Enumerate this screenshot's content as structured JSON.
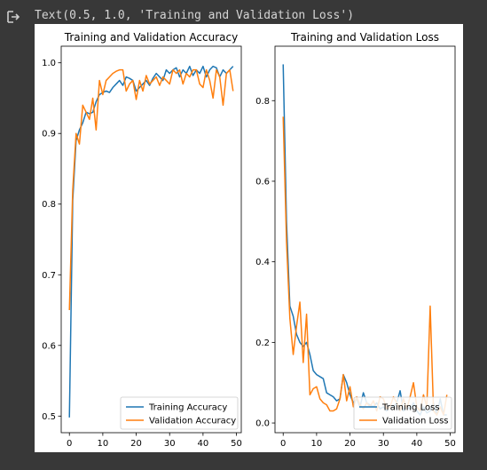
{
  "cell_output": {
    "icon": "output-arrow-icon",
    "text": "Text(0.5, 1.0, 'Training and Validation Loss')"
  },
  "chart_data": [
    {
      "type": "line",
      "title": "Training and Validation Accuracy",
      "xlabel": "",
      "ylabel": "",
      "xlim": [
        -2.45,
        51.45
      ],
      "ylim": [
        0.4765,
        1.0235
      ],
      "xticks": [
        0,
        10,
        20,
        30,
        40,
        50
      ],
      "yticks": [
        0.5,
        0.6,
        0.7,
        0.8,
        0.9,
        1.0
      ],
      "legend": "lower-right",
      "grid": false,
      "x": [
        0,
        1,
        2,
        3,
        4,
        5,
        6,
        7,
        8,
        9,
        10,
        11,
        12,
        13,
        14,
        15,
        16,
        17,
        18,
        19,
        20,
        21,
        22,
        23,
        24,
        25,
        26,
        27,
        28,
        29,
        30,
        31,
        32,
        33,
        34,
        35,
        36,
        37,
        38,
        39,
        40,
        41,
        42,
        43,
        44,
        45,
        46,
        47,
        48,
        49
      ],
      "series": [
        {
          "name": "Training Accuracy",
          "color": "#1f77b4",
          "values": [
            0.498,
            0.805,
            0.89,
            0.905,
            0.915,
            0.93,
            0.928,
            0.93,
            0.945,
            0.955,
            0.958,
            0.96,
            0.958,
            0.965,
            0.97,
            0.975,
            0.968,
            0.98,
            0.978,
            0.975,
            0.96,
            0.965,
            0.97,
            0.975,
            0.968,
            0.978,
            0.985,
            0.98,
            0.975,
            0.99,
            0.985,
            0.99,
            0.993,
            0.98,
            0.99,
            0.985,
            0.995,
            0.982,
            0.99,
            0.985,
            0.995,
            0.98,
            0.99,
            0.995,
            0.993,
            0.98,
            0.99,
            0.985,
            0.99,
            0.995
          ]
        },
        {
          "name": "Validation Accuracy",
          "color": "#ff7f0e",
          "values": [
            0.65,
            0.82,
            0.9,
            0.885,
            0.94,
            0.93,
            0.92,
            0.95,
            0.905,
            0.975,
            0.955,
            0.975,
            0.98,
            0.985,
            0.988,
            0.99,
            0.99,
            0.96,
            0.97,
            0.975,
            0.948,
            0.975,
            0.96,
            0.982,
            0.97,
            0.975,
            0.98,
            0.968,
            0.98,
            0.975,
            0.97,
            0.99,
            0.985,
            0.99,
            0.97,
            0.985,
            0.98,
            0.99,
            0.99,
            0.97,
            0.965,
            0.99,
            0.975,
            0.95,
            0.99,
            0.98,
            0.94,
            0.985,
            0.99,
            0.96
          ]
        }
      ]
    },
    {
      "type": "line",
      "title": "Training and Validation Loss",
      "xlabel": "",
      "ylabel": "",
      "xlim": [
        -2.45,
        51.45
      ],
      "ylim": [
        -0.0241,
        0.9351
      ],
      "xticks": [
        0,
        10,
        20,
        30,
        40,
        50
      ],
      "yticks": [
        0.0,
        0.2,
        0.4,
        0.6,
        0.8
      ],
      "legend": "lower-right",
      "grid": false,
      "x": [
        0,
        1,
        2,
        3,
        4,
        5,
        6,
        7,
        8,
        9,
        10,
        11,
        12,
        13,
        14,
        15,
        16,
        17,
        18,
        19,
        20,
        21,
        22,
        23,
        24,
        25,
        26,
        27,
        28,
        29,
        30,
        31,
        32,
        33,
        34,
        35,
        36,
        37,
        38,
        39,
        40,
        41,
        42,
        43,
        44,
        45,
        46,
        47,
        48,
        49
      ],
      "series": [
        {
          "name": "Training Loss",
          "color": "#1f77b4",
          "values": [
            0.89,
            0.5,
            0.29,
            0.265,
            0.22,
            0.2,
            0.19,
            0.2,
            0.17,
            0.13,
            0.12,
            0.115,
            0.11,
            0.075,
            0.07,
            0.065,
            0.055,
            0.06,
            0.12,
            0.1,
            0.07,
            0.05,
            0.06,
            0.04,
            0.075,
            0.05,
            0.045,
            0.04,
            0.05,
            0.035,
            0.04,
            0.03,
            0.045,
            0.04,
            0.05,
            0.08,
            0.03,
            0.04,
            0.035,
            0.05,
            0.03,
            0.02,
            0.04,
            0.025,
            0.03,
            0.05,
            0.02,
            0.06,
            0.02,
            0.02
          ]
        },
        {
          "name": "Validation Loss",
          "color": "#ff7f0e",
          "values": [
            0.76,
            0.45,
            0.26,
            0.17,
            0.24,
            0.3,
            0.15,
            0.27,
            0.07,
            0.085,
            0.09,
            0.06,
            0.05,
            0.045,
            0.03,
            0.03,
            0.035,
            0.06,
            0.12,
            0.055,
            0.09,
            0.04,
            0.065,
            0.045,
            0.035,
            0.05,
            0.04,
            0.055,
            0.03,
            0.065,
            0.06,
            0.035,
            0.04,
            0.065,
            0.05,
            0.03,
            0.06,
            0.035,
            0.065,
            0.1,
            0.04,
            0.03,
            0.07,
            0.04,
            0.29,
            0.03,
            0.02,
            0.04,
            0.02,
            0.07
          ]
        }
      ]
    }
  ]
}
